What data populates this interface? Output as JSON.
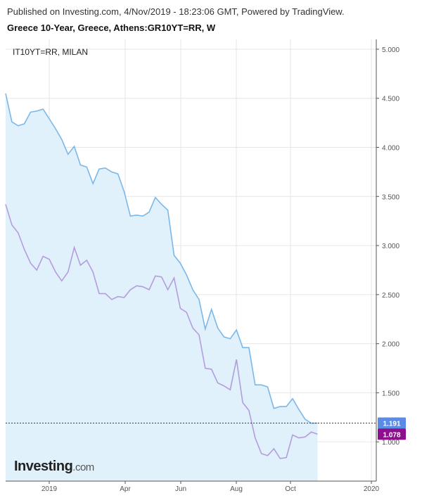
{
  "header": {
    "published": "Published on Investing.com, 4/Nov/2019 - 18:23:06 GMT, Powered by TradingView.",
    "symbol": "Greece 10-Year, Greece, Athens:GR10YT=RR, W"
  },
  "logo": {
    "brand": "Investing",
    "suffix": ".com"
  },
  "colors": {
    "primary": "#7ab8ea",
    "primary_fill": "#e1f1fb",
    "compare": "#b39ddb",
    "primary_tag": "#5a8ce6",
    "compare_tag": "#8e0f8e",
    "grid": "#e6e6e6"
  },
  "chart_data": {
    "type": "line",
    "compare_label": "IT10YT=RR, MILAN",
    "ylim": [
      0.6,
      5.1
    ],
    "y_ticks": [
      "5.000",
      "4.500",
      "4.000",
      "3.500",
      "3.000",
      "2.500",
      "2.000",
      "1.500",
      "1.000"
    ],
    "x_ticks": [
      "2019",
      "Apr",
      "Jun",
      "Aug",
      "Oct",
      "2020"
    ],
    "last_values": {
      "primary": "1.191",
      "compare": "1.078"
    },
    "series": [
      {
        "values": [
          4.55,
          4.26,
          4.22,
          4.24,
          4.36,
          4.37,
          4.39,
          4.29,
          4.19,
          4.08,
          3.93,
          4.01,
          3.82,
          3.8,
          3.63,
          3.78,
          3.79,
          3.75,
          3.73,
          3.55,
          3.3,
          3.31,
          3.3,
          3.34,
          3.49,
          3.42,
          3.36,
          2.9,
          2.82,
          2.7,
          2.55,
          2.45,
          2.15,
          2.35,
          2.16,
          2.07,
          2.05,
          2.14,
          1.96,
          1.96,
          1.58,
          1.58,
          1.56,
          1.34,
          1.36,
          1.36,
          1.44,
          1.33,
          1.23,
          1.19,
          1.191
        ]
      },
      {
        "values": [
          3.42,
          3.21,
          3.13,
          2.96,
          2.82,
          2.75,
          2.89,
          2.86,
          2.73,
          2.64,
          2.73,
          2.98,
          2.8,
          2.85,
          2.73,
          2.51,
          2.51,
          2.45,
          2.48,
          2.47,
          2.55,
          2.59,
          2.58,
          2.55,
          2.69,
          2.68,
          2.55,
          2.67,
          2.36,
          2.32,
          2.16,
          2.09,
          1.75,
          1.74,
          1.6,
          1.57,
          1.53,
          1.84,
          1.4,
          1.32,
          1.04,
          0.88,
          0.86,
          0.93,
          0.83,
          0.84,
          1.07,
          1.04,
          1.05,
          1.1,
          1.078
        ]
      }
    ]
  }
}
